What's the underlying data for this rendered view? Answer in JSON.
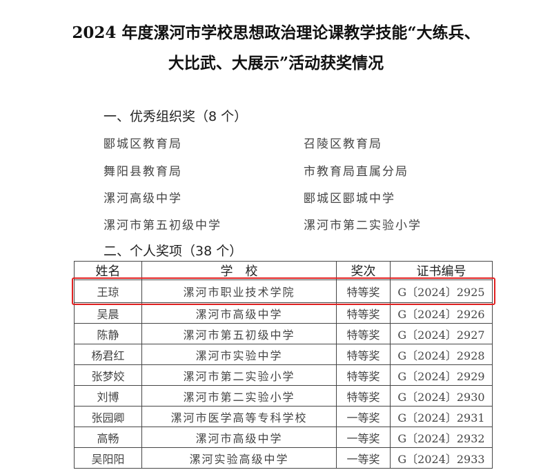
{
  "title": [
    "2024 年度漯河市学校思想政治理论课教学技能“大练兵、",
    "大比武、大展示”活动获奖情况"
  ],
  "section1": {
    "heading": "一、优秀组织奖（8 个）",
    "orgs": [
      "郾城区教育局",
      "召陵区教育局",
      "舞阳县教育局",
      "市教育局直属分局",
      "漯河高级中学",
      "郾城区郾城中学",
      "漯河市第五初级中学",
      "漯河市第二实验小学"
    ]
  },
  "section2": {
    "heading": "二、个人奖项（38 个）",
    "headers": [
      "姓名",
      "学　校",
      "奖次",
      "证书编号"
    ],
    "rows": [
      [
        "王琼",
        "漯河市职业技术学院",
        "特等奖",
        "G〔2024〕2925"
      ],
      [
        "吴晨",
        "漯河市高级中学",
        "特等奖",
        "G〔2024〕2926"
      ],
      [
        "陈静",
        "漯河市第五初级中学",
        "特等奖",
        "G〔2024〕2927"
      ],
      [
        "杨君红",
        "漯河市实验中学",
        "特等奖",
        "G〔2024〕2928"
      ],
      [
        "张梦姣",
        "漯河市第二实验小学",
        "特等奖",
        "G〔2024〕2929"
      ],
      [
        "刘博",
        "漯河市第二实验小学",
        "特等奖",
        "G〔2024〕2930"
      ],
      [
        "张园卿",
        "漯河市医学高等专科学校",
        "一等奖",
        "G〔2024〕2931"
      ],
      [
        "高畅",
        "漯河市高级中学",
        "一等奖",
        "G〔2024〕2932"
      ],
      [
        "吴阳阳",
        "漯河实验高级中学",
        "一等奖",
        "G〔2024〕2933"
      ]
    ]
  },
  "highlight_color": "#e02020"
}
